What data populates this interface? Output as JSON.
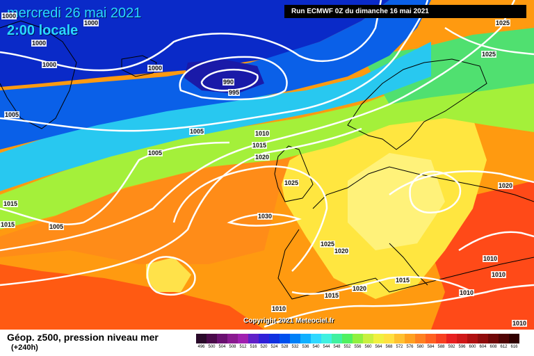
{
  "header": {
    "date": "mercredi 26 mai 2021",
    "time": "2:00 locale",
    "run": "Run ECMWF 0Z du dimanche 16 mai 2021"
  },
  "copyright": "Copyright 2021 Meteociel.fr",
  "footer": {
    "field": "Géop. z500, pression niveau mer",
    "lead": "(+240h)"
  },
  "isobar_labels": [
    {
      "text": "1000"
    },
    {
      "text": "1000"
    },
    {
      "text": "1000"
    },
    {
      "text": "1000"
    },
    {
      "text": "1000"
    },
    {
      "text": "990"
    },
    {
      "text": "995"
    },
    {
      "text": "1005"
    },
    {
      "text": "1005"
    },
    {
      "text": "1005"
    },
    {
      "text": "1010"
    },
    {
      "text": "1015"
    },
    {
      "text": "1020"
    },
    {
      "text": "1025"
    },
    {
      "text": "1025"
    },
    {
      "text": "1020"
    },
    {
      "text": "1025"
    },
    {
      "text": "1015"
    },
    {
      "text": "1015"
    },
    {
      "text": "1005"
    },
    {
      "text": "1030"
    },
    {
      "text": "1025"
    },
    {
      "text": "1020"
    },
    {
      "text": "1020"
    },
    {
      "text": "1015"
    },
    {
      "text": "1015"
    },
    {
      "text": "1010"
    },
    {
      "text": "1010"
    },
    {
      "text": "1010"
    },
    {
      "text": "1010"
    },
    {
      "text": "1010"
    }
  ],
  "scale": {
    "values": [
      "496",
      "500",
      "504",
      "508",
      "512",
      "516",
      "520",
      "524",
      "528",
      "532",
      "536",
      "540",
      "544",
      "548",
      "552",
      "556",
      "560",
      "564",
      "568",
      "572",
      "576",
      "580",
      "584",
      "588",
      "592",
      "596",
      "600",
      "604",
      "608",
      "612",
      "616"
    ],
    "colors": [
      "#2a0a2a",
      "#4a0a4a",
      "#6a1070",
      "#8a1a90",
      "#a020b0",
      "#6020c8",
      "#3020d8",
      "#1030e0",
      "#0050ee",
      "#0080f8",
      "#10b0ff",
      "#30d8ff",
      "#40f0e0",
      "#40f0a0",
      "#50f060",
      "#90f040",
      "#c8f040",
      "#f0f040",
      "#ffe040",
      "#ffc030",
      "#ffa020",
      "#ff8020",
      "#ff6020",
      "#f84020",
      "#e82020",
      "#d01818",
      "#b01010",
      "#900c0c",
      "#700808",
      "#500404",
      "#300000"
    ]
  }
}
